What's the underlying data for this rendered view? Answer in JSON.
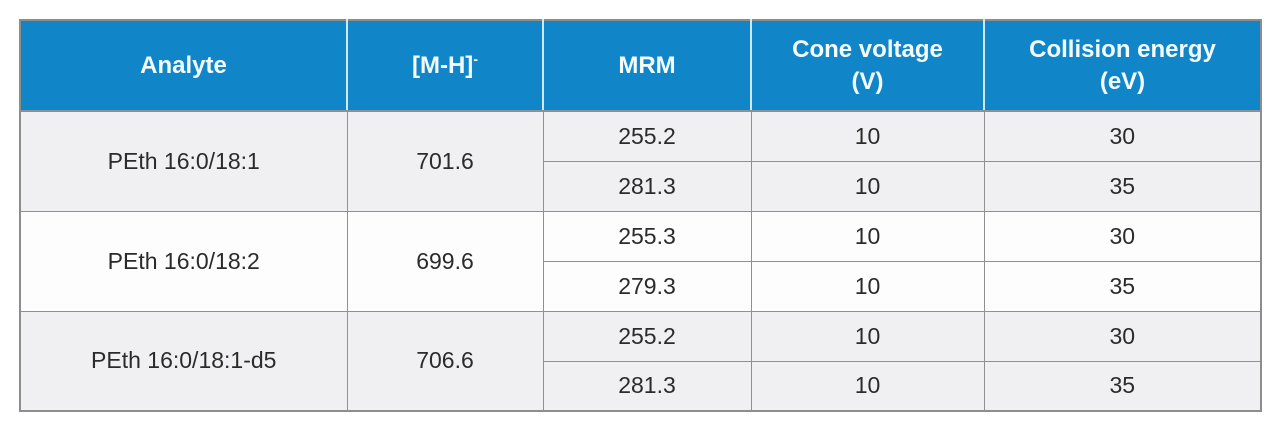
{
  "colors": {
    "header_bg": "#1086c9",
    "header_text": "#f4fbff",
    "row_shaded_bg": "#f0f0f2",
    "row_plain_bg": "#fdfdfe",
    "grid_line": "#909090",
    "body_text": "#2b2b2b"
  },
  "table": {
    "headers": {
      "analyte": "Analyte",
      "mh_base": "[M-H]",
      "mh_sup": "-",
      "mrm": "MRM",
      "cone_label": "Cone voltage",
      "cone_unit": "(V)",
      "ce_label": "Collision energy",
      "ce_unit": "(eV)"
    },
    "groups": [
      {
        "analyte": "PEth 16:0/18:1",
        "mh": "701.6",
        "transitions": [
          {
            "mrm": "255.2",
            "cone": "10",
            "ce": "30"
          },
          {
            "mrm": "281.3",
            "cone": "10",
            "ce": "35"
          }
        ]
      },
      {
        "analyte": "PEth 16:0/18:2",
        "mh": "699.6",
        "transitions": [
          {
            "mrm": "255.3",
            "cone": "10",
            "ce": "30"
          },
          {
            "mrm": "279.3",
            "cone": "10",
            "ce": "35"
          }
        ]
      },
      {
        "analyte": "PEth 16:0/18:1-d5",
        "mh": "706.6",
        "transitions": [
          {
            "mrm": "255.2",
            "cone": "10",
            "ce": "30"
          },
          {
            "mrm": "281.3",
            "cone": "10",
            "ce": "35"
          }
        ]
      }
    ]
  },
  "chart_data": {
    "type": "table",
    "title": "",
    "columns": [
      "Analyte",
      "[M-H]-",
      "MRM",
      "Cone voltage (V)",
      "Collision energy (eV)"
    ],
    "rows": [
      [
        "PEth 16:0/18:1",
        "701.6",
        "255.2",
        "10",
        "30"
      ],
      [
        "PEth 16:0/18:1",
        "701.6",
        "281.3",
        "10",
        "35"
      ],
      [
        "PEth 16:0/18:2",
        "699.6",
        "255.3",
        "10",
        "30"
      ],
      [
        "PEth 16:0/18:2",
        "699.6",
        "279.3",
        "10",
        "35"
      ],
      [
        "PEth 16:0/18:1-d5",
        "706.6",
        "255.2",
        "10",
        "30"
      ],
      [
        "PEth 16:0/18:1-d5",
        "706.6",
        "281.3",
        "10",
        "35"
      ]
    ],
    "merged_columns": [
      "Analyte",
      "[M-H]-"
    ],
    "grid": true,
    "header_style": "blue-filled"
  }
}
